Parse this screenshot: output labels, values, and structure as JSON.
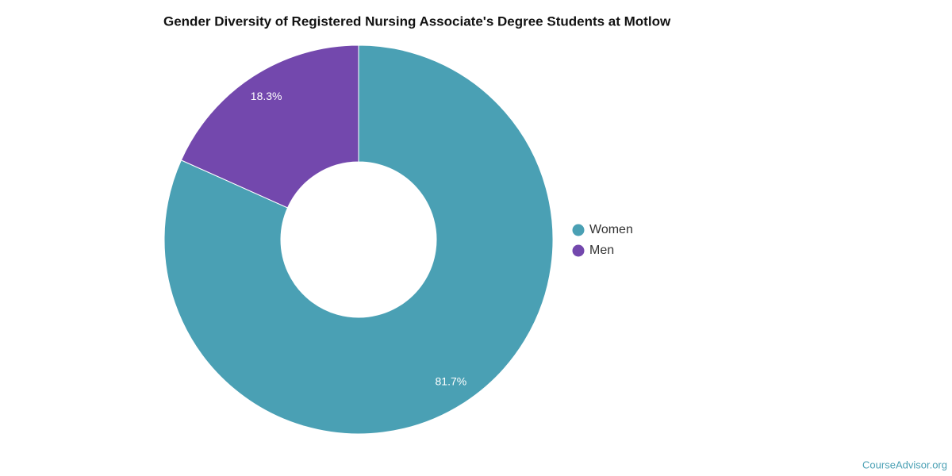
{
  "chart_data": {
    "type": "donut",
    "title": "Gender Diversity of Registered Nursing Associate's Degree Students at Motlow",
    "categories": [
      "Women",
      "Men"
    ],
    "values": [
      81.7,
      18.3
    ],
    "value_labels": [
      "81.7%",
      "18.3%"
    ],
    "colors": [
      "#4aa0b4",
      "#7348ad"
    ],
    "legend": "right",
    "credit": "CourseAdvisor.org"
  }
}
